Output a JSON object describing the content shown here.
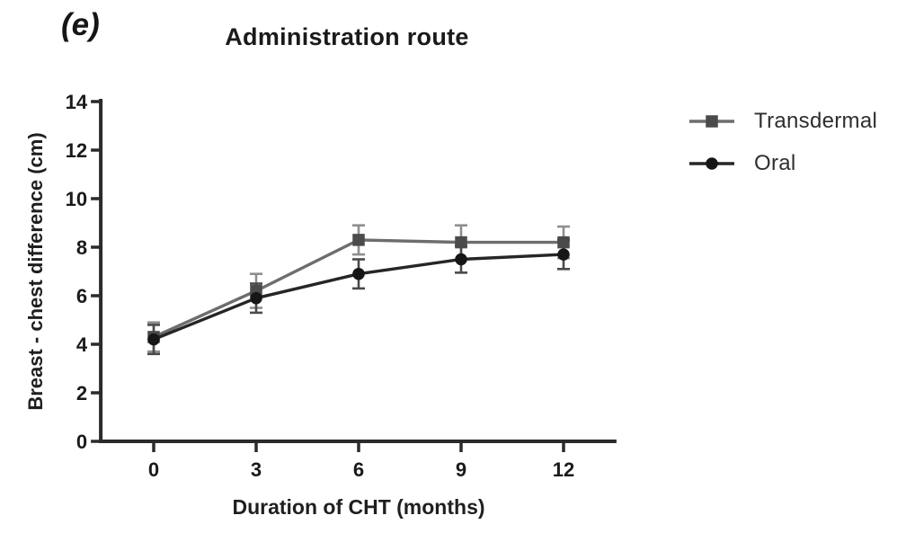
{
  "panel_label": "(e)",
  "title": "Administration route",
  "colors": {
    "axis": "#2b2b2b",
    "tick_text": "#1a1a1a",
    "background": "#ffffff"
  },
  "chart_data": {
    "type": "line",
    "title": "Administration route",
    "xlabel": "Duration of CHT (months)",
    "ylabel": "Breast - chest difference (cm)",
    "x": [
      0,
      3,
      6,
      9,
      12
    ],
    "xticks": [
      "0",
      "3",
      "6",
      "9",
      "12"
    ],
    "yticks": [
      "0",
      "2",
      "4",
      "6",
      "8",
      "10",
      "12",
      "14"
    ],
    "ytick_values": [
      0,
      2,
      4,
      6,
      8,
      10,
      12,
      14
    ],
    "xlim": [
      -1.55,
      13.55
    ],
    "ylim": [
      0,
      14
    ],
    "grid": false,
    "error_bars": true,
    "legend_position": "right",
    "series": [
      {
        "name": "Transdermal",
        "marker": "square",
        "values": [
          4.3,
          6.2,
          8.3,
          8.2,
          8.2
        ],
        "errors": [
          0.6,
          0.7,
          0.6,
          0.7,
          0.65
        ],
        "marker_color": "#4b4b4b",
        "line_color": "#6d6d6d",
        "error_color": "#8e8e8e"
      },
      {
        "name": "Oral",
        "marker": "circle",
        "values": [
          4.2,
          5.9,
          6.9,
          7.5,
          7.7
        ],
        "errors": [
          0.6,
          0.6,
          0.6,
          0.55,
          0.6
        ],
        "marker_color": "#161616",
        "line_color": "#262626",
        "error_color": "#4a4a4a"
      }
    ]
  }
}
